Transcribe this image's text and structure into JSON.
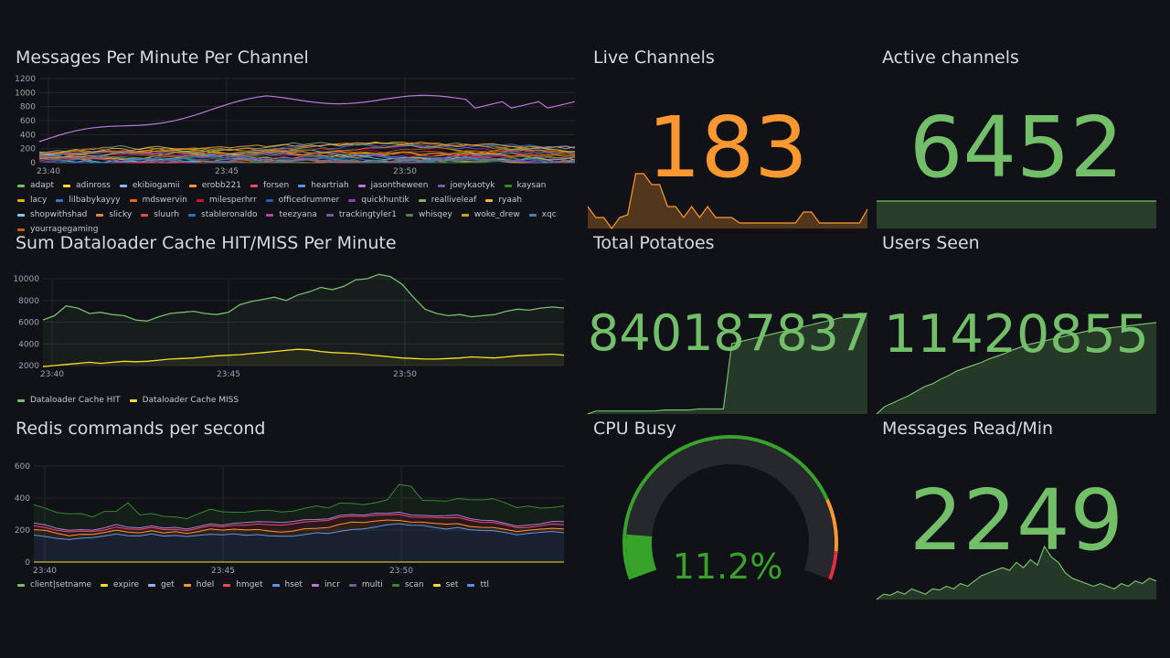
{
  "colors": {
    "background": "#111217",
    "green": "#73bf69",
    "orange": "#ff9830",
    "grid": "#24262c"
  },
  "panels": {
    "messages_per_minute": {
      "title": "Messages Per Minute Per Channel",
      "y_ticks": [
        "0",
        "200",
        "400",
        "600",
        "800",
        "1000",
        "1200"
      ],
      "x_ticks": [
        "23:40",
        "23:45",
        "23:50"
      ],
      "legend": [
        {
          "name": "adapt",
          "color": "#73bf69"
        },
        {
          "name": "adinross",
          "color": "#fade2a"
        },
        {
          "name": "ekibiogamii",
          "color": "#8ab8ff"
        },
        {
          "name": "erobb221",
          "color": "#ff9830"
        },
        {
          "name": "forsen",
          "color": "#f2495c"
        },
        {
          "name": "heartriah",
          "color": "#5794f2"
        },
        {
          "name": "jasontheween",
          "color": "#b877d9"
        },
        {
          "name": "joeykaotyk",
          "color": "#705da0"
        },
        {
          "name": "kaysan",
          "color": "#37872d"
        },
        {
          "name": "lacy",
          "color": "#e0b400"
        },
        {
          "name": "lilbabykayyy",
          "color": "#3274d9"
        },
        {
          "name": "mdswervin",
          "color": "#fa6400"
        },
        {
          "name": "milesperhrr",
          "color": "#c4162a"
        },
        {
          "name": "officedrummer",
          "color": "#1f60c4"
        },
        {
          "name": "quickhuntik",
          "color": "#8f3bb8"
        },
        {
          "name": "realliveleaf",
          "color": "#7eb26d"
        },
        {
          "name": "ryaah",
          "color": "#eab839"
        },
        {
          "name": "shopwithshad",
          "color": "#6ed0e0"
        },
        {
          "name": "slicky",
          "color": "#ef843c"
        },
        {
          "name": "sluurh",
          "color": "#e24d42"
        },
        {
          "name": "stableronaldo",
          "color": "#1f78c1"
        },
        {
          "name": "teezyana",
          "color": "#ba43a9"
        },
        {
          "name": "trackingtyler1",
          "color": "#705da0"
        },
        {
          "name": "whisqey",
          "color": "#508642"
        },
        {
          "name": "woke_drew",
          "color": "#cca300"
        },
        {
          "name": "xqc",
          "color": "#447ebc"
        },
        {
          "name": "yourragegaming",
          "color": "#c15c17"
        }
      ]
    },
    "dataloader": {
      "title": "Sum Dataloader Cache HIT/MISS Per Minute",
      "y_ticks": [
        "2000",
        "4000",
        "6000",
        "8000",
        "10000"
      ],
      "x_ticks": [
        "23:40",
        "23:45",
        "23:50"
      ],
      "legend": [
        {
          "name": "Dataloader Cache HIT",
          "color": "#73bf69"
        },
        {
          "name": "Dataloader Cache MISS",
          "color": "#fade2a"
        }
      ]
    },
    "redis": {
      "title": "Redis commands per second",
      "y_ticks": [
        "0",
        "200",
        "400",
        "600"
      ],
      "x_ticks": [
        "23:40",
        "23:45",
        "23:50"
      ],
      "legend": [
        {
          "name": "client|setname",
          "color": "#73bf69"
        },
        {
          "name": "expire",
          "color": "#fade2a"
        },
        {
          "name": "get",
          "color": "#8ab8ff"
        },
        {
          "name": "hdel",
          "color": "#ff9830"
        },
        {
          "name": "hmget",
          "color": "#f2495c"
        },
        {
          "name": "hset",
          "color": "#5794f2"
        },
        {
          "name": "incr",
          "color": "#b877d9"
        },
        {
          "name": "multi",
          "color": "#705da0"
        },
        {
          "name": "scan",
          "color": "#37872d"
        },
        {
          "name": "set",
          "color": "#fade2a"
        },
        {
          "name": "ttl",
          "color": "#5794f2"
        }
      ]
    },
    "live_channels": {
      "title": "Live Channels",
      "value": "183"
    },
    "active_channels": {
      "title": "Active channels",
      "value": "6452"
    },
    "total_potatoes": {
      "title": "Total Potatoes",
      "value": "840187837"
    },
    "users_seen": {
      "title": "Users Seen",
      "value": "11420855"
    },
    "cpu_busy": {
      "title": "CPU Busy",
      "value": "11.2%",
      "percent": 11.2
    },
    "messages_read": {
      "title": "Messages Read/Min",
      "value": "2249"
    }
  }
}
